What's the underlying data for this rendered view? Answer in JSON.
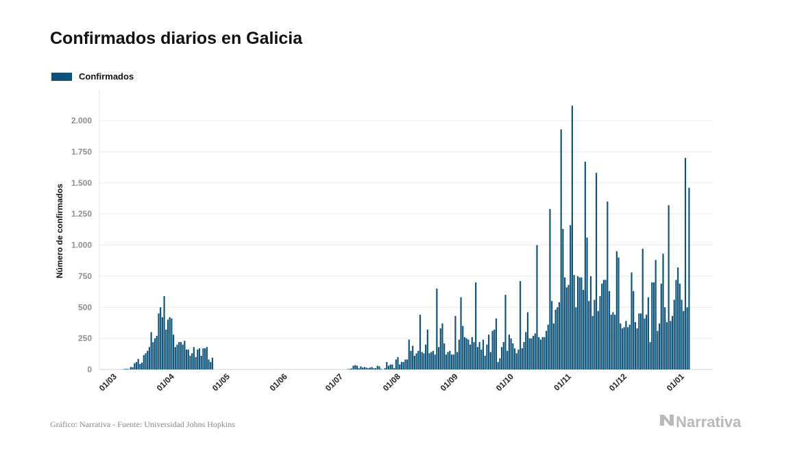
{
  "title": "Confirmados diarios en Galicia",
  "legend": {
    "label": "Confirmados",
    "color": "#0d5278"
  },
  "footer": "Gráfico: Narrativa - Fuente: Universidad Johns Hopkins",
  "brand": {
    "name": "Narrativa",
    "icon": "narrativa-logo-icon"
  },
  "chart_data": {
    "type": "bar",
    "ylabel": "Número de confirmados",
    "xlabel": "",
    "ylim": [
      0,
      2250
    ],
    "y_ticks": [
      0,
      250,
      500,
      750,
      1000,
      1250,
      1500,
      1750,
      2000
    ],
    "y_tick_labels": [
      "0",
      "250",
      "500",
      "750",
      "1.000",
      "1.250",
      "1.500",
      "1.750",
      "2.000"
    ],
    "x_start": "2020-02-23",
    "x_tick_dates": [
      "2020-03-01",
      "2020-04-01",
      "2020-05-01",
      "2020-06-01",
      "2020-07-01",
      "2020-08-01",
      "2020-09-01",
      "2020-10-01",
      "2020-11-01",
      "2020-12-01",
      "2021-01-01"
    ],
    "x_tick_labels": [
      "01/03",
      "01/04",
      "01/05",
      "01/06",
      "01/07",
      "01/08",
      "01/09",
      "01/10",
      "01/11",
      "01/12",
      "01/01"
    ],
    "grid": true,
    "legend_position": "top-left",
    "series": [
      {
        "name": "Confirmados",
        "color": "#0d5278",
        "values": [
          0,
          0,
          0,
          0,
          0,
          0,
          0,
          0,
          0,
          0,
          0,
          0,
          2,
          5,
          5,
          3,
          20,
          18,
          50,
          60,
          85,
          45,
          55,
          115,
          130,
          150,
          180,
          300,
          220,
          250,
          270,
          450,
          500,
          420,
          590,
          320,
          400,
          420,
          410,
          280,
          180,
          200,
          220,
          220,
          200,
          230,
          160,
          160,
          110,
          130,
          180,
          100,
          160,
          170,
          110,
          170,
          170,
          180,
          80,
          60,
          95,
          0,
          0,
          0,
          0,
          0,
          0,
          0,
          0,
          0,
          0,
          0,
          0,
          0,
          0,
          0,
          0,
          0,
          0,
          0,
          0,
          0,
          0,
          0,
          0,
          0,
          0,
          0,
          0,
          0,
          0,
          0,
          0,
          0,
          0,
          0,
          0,
          0,
          0,
          0,
          0,
          0,
          0,
          0,
          0,
          0,
          0,
          0,
          0,
          0,
          0,
          0,
          0,
          0,
          0,
          0,
          0,
          0,
          0,
          0,
          0,
          0,
          0,
          0,
          0,
          0,
          0,
          0,
          0,
          0,
          0,
          0,
          0,
          3,
          5,
          8,
          30,
          35,
          30,
          10,
          25,
          15,
          20,
          15,
          10,
          15,
          20,
          10,
          10,
          30,
          25,
          5,
          0,
          10,
          60,
          30,
          40,
          40,
          10,
          80,
          100,
          40,
          60,
          60,
          80,
          80,
          240,
          150,
          190,
          110,
          130,
          150,
          440,
          140,
          130,
          200,
          320,
          130,
          140,
          150,
          120,
          650,
          180,
          330,
          370,
          210,
          120,
          140,
          150,
          120,
          120,
          430,
          140,
          240,
          580,
          350,
          260,
          250,
          240,
          200,
          260,
          220,
          700,
          180,
          220,
          160,
          240,
          110,
          200,
          280,
          140,
          310,
          320,
          410,
          60,
          90,
          180,
          220,
          600,
          150,
          280,
          250,
          210,
          170,
          130,
          160,
          710,
          170,
          220,
          300,
          460,
          250,
          250,
          270,
          290,
          1000,
          260,
          240,
          260,
          260,
          310,
          360,
          1290,
          550,
          370,
          480,
          500,
          540,
          1930,
          1130,
          740,
          660,
          680,
          1160,
          2120,
          760,
          500,
          750,
          740,
          740,
          640,
          1670,
          1060,
          550,
          750,
          430,
          560,
          1580,
          470,
          590,
          690,
          720,
          720,
          1350,
          630,
          440,
          460,
          440,
          950,
          900,
          370,
          330,
          340,
          390,
          340,
          360,
          780,
          630,
          380,
          330,
          450,
          450,
          970,
          410,
          440,
          580,
          220,
          700,
          700,
          880,
          310,
          370,
          690,
          930,
          500,
          380,
          1320,
          390,
          430,
          560,
          720,
          820,
          690,
          560,
          470,
          1700,
          500,
          1460
        ]
      }
    ]
  }
}
